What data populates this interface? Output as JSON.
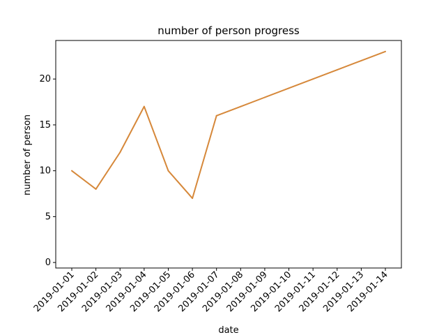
{
  "chart_data": {
    "type": "line",
    "title": "number of person progress",
    "xlabel": "date",
    "ylabel": "number of person",
    "x": [
      "2019-01-01",
      "2019-01-02",
      "2019-01-03",
      "2019-01-04",
      "2019-01-05",
      "2019-01-06",
      "2019-01-07",
      "2019-01-08",
      "2019-01-09",
      "2019-01-10",
      "2019-01-11",
      "2019-01-12",
      "2019-01-13",
      "2019-01-14"
    ],
    "series": [
      {
        "values": [
          10,
          8,
          12,
          17,
          10,
          7,
          16,
          17,
          18,
          19,
          20,
          21,
          22,
          23
        ],
        "color": "#d6883a"
      }
    ],
    "ylim": [
      0,
      23
    ],
    "yticks": [
      0,
      5,
      10,
      15,
      20
    ],
    "grid": false,
    "legend": "none"
  }
}
